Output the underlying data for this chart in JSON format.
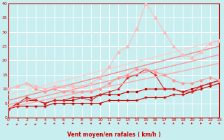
{
  "xlabel": "Vent moyen/en rafales ( km/h )",
  "xlim": [
    0,
    23
  ],
  "ylim": [
    0,
    40
  ],
  "yticks": [
    0,
    5,
    10,
    15,
    20,
    25,
    30,
    35,
    40
  ],
  "xticks": [
    0,
    1,
    2,
    3,
    4,
    5,
    6,
    7,
    8,
    9,
    10,
    11,
    12,
    13,
    14,
    15,
    16,
    17,
    18,
    19,
    20,
    21,
    22,
    23
  ],
  "bg_color": "#c8eef0",
  "series": [
    {
      "x": [
        0,
        1,
        2,
        3,
        4,
        5,
        6,
        7,
        8,
        9,
        10,
        11,
        12,
        13,
        14,
        15,
        16,
        17,
        18,
        19,
        20,
        21,
        22,
        23
      ],
      "y": [
        3,
        4,
        4,
        4,
        4,
        5,
        5,
        5,
        5,
        5,
        5,
        6,
        6,
        6,
        6,
        7,
        7,
        7,
        8,
        8,
        9,
        10,
        11,
        12
      ],
      "color": "#cc0000",
      "marker": "+",
      "lw": 0.8,
      "ms": 3
    },
    {
      "x": [
        0,
        1,
        2,
        3,
        4,
        5,
        6,
        7,
        8,
        9,
        10,
        11,
        12,
        13,
        14,
        15,
        16,
        17,
        18,
        19,
        20,
        21,
        22,
        23
      ],
      "y": [
        3,
        5,
        6,
        6,
        5,
        6,
        6,
        6,
        7,
        7,
        8,
        8,
        8,
        9,
        9,
        10,
        10,
        10,
        10,
        9,
        10,
        11,
        12,
        13
      ],
      "color": "#cc0000",
      "marker": "s",
      "lw": 0.8,
      "ms": 2
    },
    {
      "x": [
        0,
        1,
        2,
        3,
        4,
        5,
        6,
        7,
        8,
        9,
        10,
        11,
        12,
        13,
        14,
        15,
        16,
        17,
        18,
        19,
        20,
        21,
        22,
        23
      ],
      "y": [
        3,
        5,
        7,
        6,
        5,
        6,
        6,
        7,
        7,
        6,
        8,
        9,
        10,
        14,
        15,
        17,
        15,
        10,
        10,
        9,
        9,
        11,
        12,
        13
      ],
      "color": "#dd2222",
      "marker": "+",
      "lw": 0.8,
      "ms": 3
    },
    {
      "x": [
        0,
        23
      ],
      "y": [
        3.5,
        19
      ],
      "color": "#ffaaaa",
      "marker": null,
      "lw": 1.0,
      "ms": 0
    },
    {
      "x": [
        0,
        23
      ],
      "y": [
        4.5,
        22
      ],
      "color": "#ff9999",
      "marker": null,
      "lw": 1.0,
      "ms": 0
    },
    {
      "x": [
        0,
        23
      ],
      "y": [
        6,
        25
      ],
      "color": "#ff8888",
      "marker": null,
      "lw": 1.0,
      "ms": 0
    },
    {
      "x": [
        0,
        23
      ],
      "y": [
        8,
        27
      ],
      "color": "#ffcccc",
      "marker": null,
      "lw": 1.0,
      "ms": 0
    },
    {
      "x": [
        0,
        1,
        2,
        3,
        4,
        5,
        6,
        7,
        8,
        9,
        10,
        11,
        12,
        13,
        14,
        15,
        16,
        17,
        18,
        19,
        20,
        21,
        22,
        23
      ],
      "y": [
        10,
        11,
        12,
        10,
        9,
        10,
        9,
        9,
        9,
        9,
        10,
        12,
        14,
        15,
        17,
        17,
        16,
        15,
        13,
        12,
        12,
        13,
        14,
        13
      ],
      "color": "#ff9999",
      "marker": "D",
      "lw": 0.8,
      "ms": 2
    },
    {
      "x": [
        0,
        1,
        2,
        3,
        4,
        5,
        6,
        7,
        8,
        9,
        10,
        11,
        12,
        13,
        14,
        15,
        16,
        17,
        18,
        19,
        20,
        21,
        22,
        23
      ],
      "y": [
        10,
        11,
        12,
        11,
        10,
        11,
        11,
        11,
        11,
        12,
        14,
        18,
        23,
        25,
        31,
        40,
        35,
        30,
        25,
        22,
        21,
        23,
        26,
        27
      ],
      "color": "#ffbbbb",
      "marker": "^",
      "lw": 0.8,
      "ms": 3
    }
  ],
  "wind_angles": [
    45,
    45,
    45,
    45,
    10,
    10,
    10,
    10,
    10,
    10,
    10,
    10,
    10,
    10,
    10,
    10,
    10,
    350,
    350,
    350,
    350,
    350,
    10,
    10
  ]
}
